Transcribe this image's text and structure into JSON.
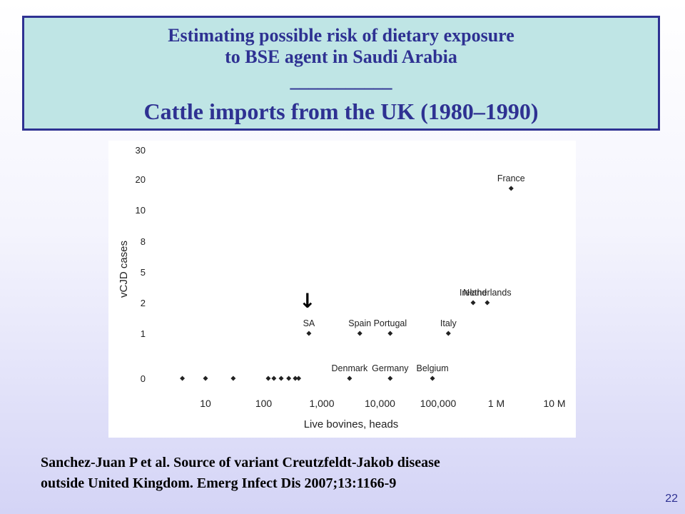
{
  "slide": {
    "title_line1": "Estimating possible risk of dietary exposure",
    "title_line2": "to BSE agent in Saudi Arabia",
    "title_rule": "___________",
    "subtitle": "Cattle imports from the UK (1980–1990)",
    "citation_line1": "Sanchez-Juan P et al. Source of variant Creutzfeldt-Jakob disease",
    "citation_line2": "outside United Kingdom. Emerg Infect Dis 2007;13:1166-9",
    "slide_number": "22",
    "colors": {
      "title_text": "#2e3192",
      "title_background": "#bfe5e5",
      "title_border": "#2e3192"
    }
  },
  "chart_data": {
    "type": "scatter",
    "title": "",
    "xlabel": "Live bovines, heads",
    "ylabel": "vCJD cases",
    "x_scale": "log",
    "xlim": [
      1,
      10000000
    ],
    "y_tick_labels": [
      "0",
      "1",
      "2",
      "5",
      "8",
      "10",
      "20",
      "30"
    ],
    "x_tick_values": [
      10,
      100,
      1000,
      10000,
      100000,
      1000000,
      10000000
    ],
    "x_tick_labels": [
      "10",
      "100",
      "1,000",
      "10,000",
      "100,000",
      "1 M",
      "10 M"
    ],
    "grid": false,
    "points": [
      {
        "x": 4,
        "y": 0,
        "label": ""
      },
      {
        "x": 10,
        "y": 0,
        "label": ""
      },
      {
        "x": 30,
        "y": 0,
        "label": ""
      },
      {
        "x": 120,
        "y": 0,
        "label": ""
      },
      {
        "x": 150,
        "y": 0,
        "label": ""
      },
      {
        "x": 200,
        "y": 0,
        "label": ""
      },
      {
        "x": 270,
        "y": 0,
        "label": ""
      },
      {
        "x": 350,
        "y": 0,
        "label": ""
      },
      {
        "x": 400,
        "y": 0,
        "label": ""
      },
      {
        "x": 3000,
        "y": 0,
        "label": "Denmark"
      },
      {
        "x": 15000,
        "y": 0,
        "label": "Germany"
      },
      {
        "x": 80000,
        "y": 0,
        "label": "Belgium"
      },
      {
        "x": 600,
        "y": 1,
        "label": "SA"
      },
      {
        "x": 4500,
        "y": 1,
        "label": "Spain"
      },
      {
        "x": 15000,
        "y": 1,
        "label": "Portugal"
      },
      {
        "x": 150000,
        "y": 1,
        "label": "Italy"
      },
      {
        "x": 400000,
        "y": 2,
        "label": "Ireland"
      },
      {
        "x": 700000,
        "y": 2,
        "label": "Netherlands"
      },
      {
        "x": 1800000,
        "y": 17,
        "label": "France"
      }
    ],
    "annotations": [
      {
        "text": "↓",
        "points_to": "SA"
      }
    ]
  }
}
